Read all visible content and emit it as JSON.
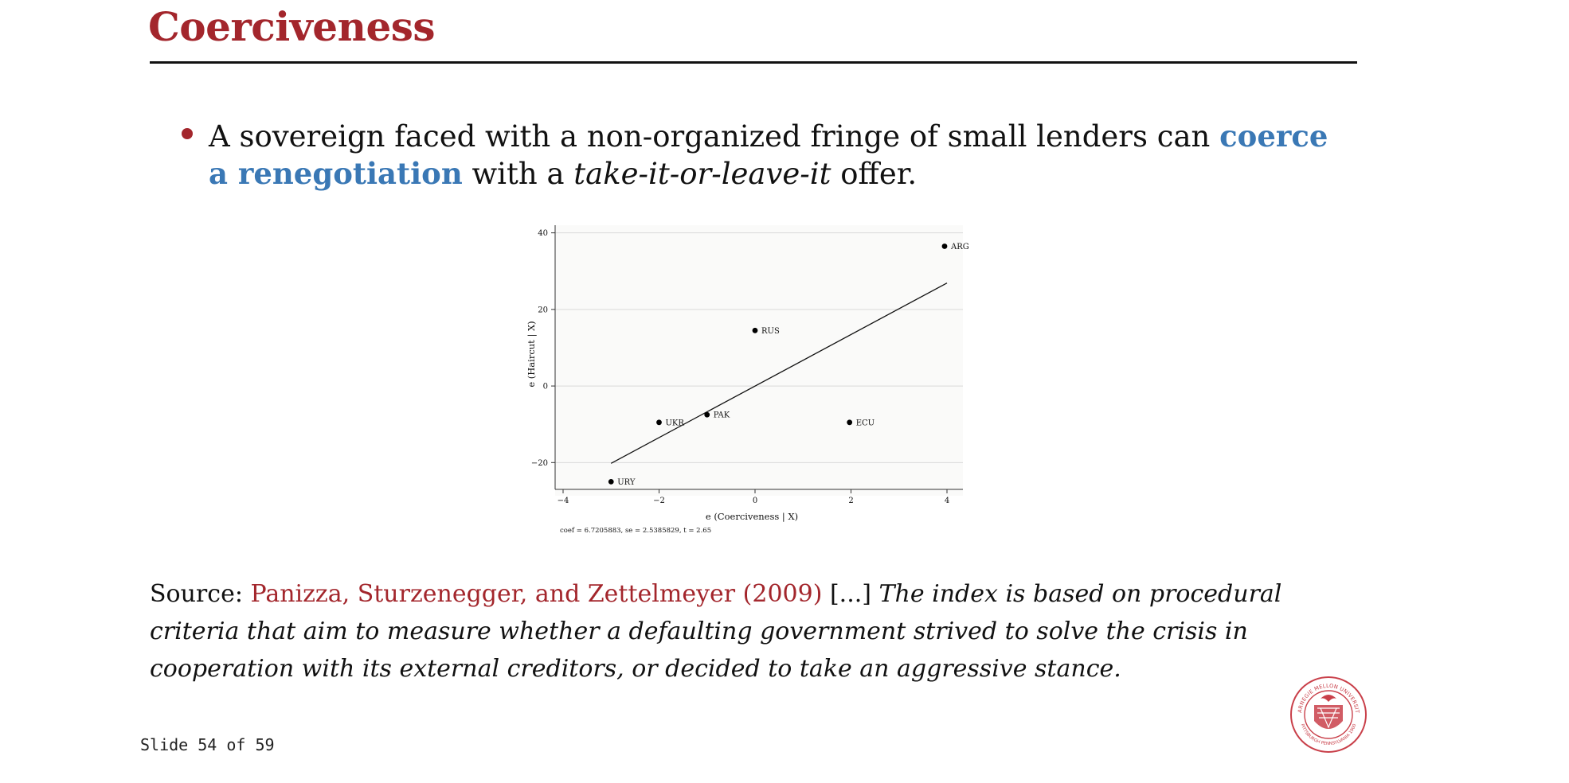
{
  "slide": {
    "title": "Coerciveness",
    "bullet": {
      "before": "A sovereign faced with a non-organized fringe of small lenders can ",
      "highlight": "coerce a renegotiation",
      "middle": " with a ",
      "italic": "take-it-or-leave-it",
      "after": " offer."
    },
    "source": {
      "label": "Source: ",
      "citation": "Panizza, Sturzenegger, and Zettelmeyer (2009)",
      "ellipsis": " [...] ",
      "quote": "The index is based on procedural criteria that aim to measure whether a defaulting government strived to solve the crisis in cooperation with its external creditors, or decided to take an aggressive stance."
    },
    "footer": "Slide 54 of 59",
    "colors": {
      "accent": "#a3262c",
      "highlight": "#3a78b5"
    },
    "seal_text": "CARNEGIE MELLON UNIVERSITY · PITTSBURGH PENNSYLVANIA 1900"
  },
  "chart_data": {
    "type": "scatter",
    "xlabel": "e (Coerciveness | X)",
    "ylabel": "e (Haircut | X)",
    "xlim": [
      -4,
      4
    ],
    "ylim": [
      -27,
      42
    ],
    "x_ticks": [
      -4,
      -2,
      0,
      2,
      4
    ],
    "x_tick_labels": [
      "−4",
      "−2",
      "0",
      "2",
      "4"
    ],
    "y_ticks": [
      -20,
      0,
      20,
      40
    ],
    "y_tick_labels": [
      "−20",
      "0",
      "20",
      "40"
    ],
    "grid": true,
    "points": [
      {
        "label": "ARG",
        "x": 3.95,
        "y": 36.5
      },
      {
        "label": "RUS",
        "x": 0.0,
        "y": 14.5
      },
      {
        "label": "UKR",
        "x": -2.0,
        "y": -9.5
      },
      {
        "label": "PAK",
        "x": -1.0,
        "y": -7.5
      },
      {
        "label": "ECU",
        "x": 1.97,
        "y": -9.5
      },
      {
        "label": "URY",
        "x": -3.0,
        "y": -25.0
      }
    ],
    "fit_line": {
      "x": [
        -3.0,
        4.0
      ],
      "y": [
        -20.2,
        26.9
      ]
    },
    "annotation": "coef = 6.7205883, se = 2.5385829, t = 2.65"
  }
}
